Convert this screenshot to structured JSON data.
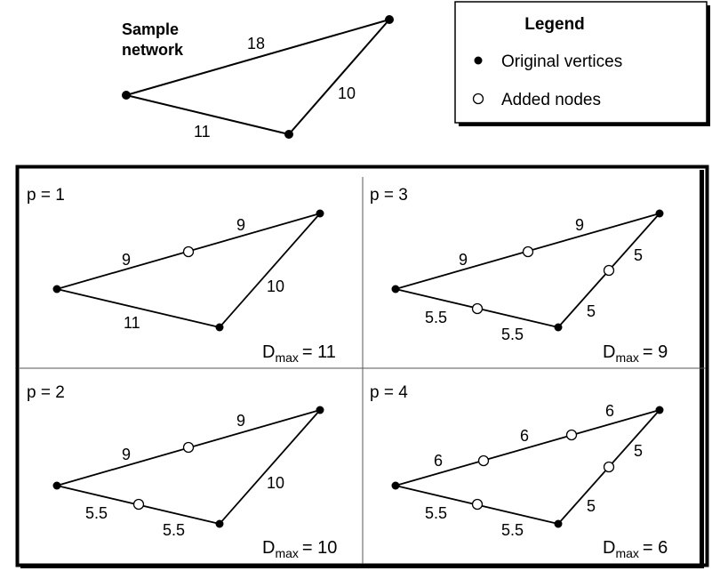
{
  "sample": {
    "title_line1": "Sample",
    "title_line2": "network",
    "edge_labels": {
      "top": "18",
      "right": "10",
      "bottom": "11"
    }
  },
  "legend": {
    "title": "Legend",
    "items": [
      {
        "marker": "filled-dot",
        "label": "Original vertices"
      },
      {
        "marker": "open-circle",
        "label": "Added nodes"
      }
    ]
  },
  "panels": [
    {
      "id": "p1",
      "title": "p = 1",
      "dmax_prefix": "D",
      "dmax_sub": "max",
      "dmax_value": "= 11",
      "edge_labels": [
        "9",
        "9",
        "10",
        "11"
      ]
    },
    {
      "id": "p3",
      "title": "p = 3",
      "dmax_prefix": "D",
      "dmax_sub": "max",
      "dmax_value": "= 9",
      "edge_labels": [
        "9",
        "9",
        "5",
        "5",
        "5.5",
        "5.5"
      ]
    },
    {
      "id": "p2",
      "title": "p = 2",
      "dmax_prefix": "D",
      "dmax_sub": "max",
      "dmax_value": "= 10",
      "edge_labels": [
        "9",
        "9",
        "10",
        "5.5",
        "5.5"
      ]
    },
    {
      "id": "p4",
      "title": "p = 4",
      "dmax_prefix": "D",
      "dmax_sub": "max",
      "dmax_value": "= 6",
      "edge_labels": [
        "6",
        "6",
        "6",
        "5",
        "5",
        "5.5",
        "5.5"
      ]
    }
  ]
}
